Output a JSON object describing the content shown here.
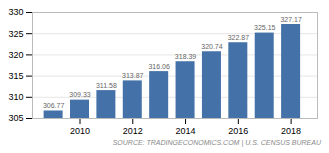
{
  "chart_data": {
    "type": "bar",
    "x": [
      2009,
      2010,
      2011,
      2012,
      2013,
      2014,
      2015,
      2016,
      2017,
      2018
    ],
    "values": [
      306.77,
      309.33,
      311.58,
      313.87,
      316.06,
      318.39,
      320.74,
      322.87,
      325.15,
      327.17
    ],
    "color": "#4472a8",
    "xlim": [
      2008.2,
      2019.0
    ],
    "xticks": [
      2010,
      2012,
      2014,
      2016,
      2018
    ],
    "ylim": [
      305,
      330
    ],
    "yticks": [
      305,
      310,
      315,
      320,
      325,
      330
    ],
    "grid": true,
    "data_labels": true,
    "annotations": [
      "SOURCE: TRADINGECONOMICS.COM | U.S. CENSUS BUREAU"
    ]
  }
}
